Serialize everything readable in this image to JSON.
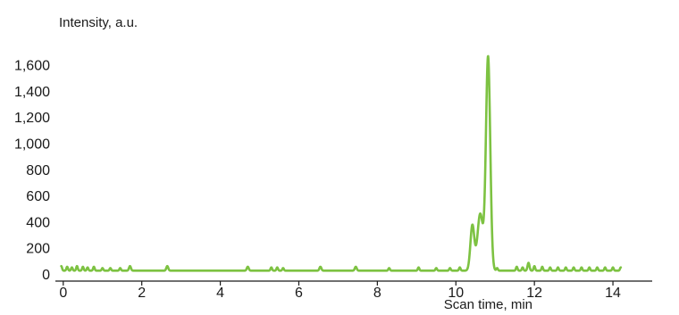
{
  "chart_data": {
    "type": "line",
    "title": "",
    "ylabel": "Intensity, a.u.",
    "xlabel": "Scan time, min",
    "xlim": [
      -0.2,
      15.0
    ],
    "ylim": [
      0,
      1700
    ],
    "x_ticks": [
      0,
      2,
      4,
      6,
      8,
      10,
      12,
      14
    ],
    "x_tick_labels": [
      "0",
      "2",
      "4",
      "6",
      "8",
      "10",
      "12",
      "14"
    ],
    "y_ticks": [
      0,
      200,
      400,
      600,
      800,
      1000,
      1200,
      1400,
      1600
    ],
    "y_tick_labels": [
      "0",
      "200",
      "400",
      "600",
      "800",
      "1,000",
      "1,200",
      "1,400",
      "1,600"
    ],
    "grid": false,
    "legend": "none",
    "series": [
      {
        "color": "#7dc242",
        "baseline": 25,
        "peaks": [
          {
            "x": 10.42,
            "y": 370,
            "width": 0.05
          },
          {
            "x": 10.62,
            "y": 460,
            "width": 0.07
          },
          {
            "x": 10.82,
            "y": 1660,
            "width": 0.055
          },
          {
            "x": -0.05,
            "y": 60,
            "width": 0.02
          },
          {
            "x": 0.1,
            "y": 55,
            "width": 0.02
          },
          {
            "x": 0.22,
            "y": 50,
            "width": 0.02
          },
          {
            "x": 0.35,
            "y": 60,
            "width": 0.02
          },
          {
            "x": 0.5,
            "y": 55,
            "width": 0.02
          },
          {
            "x": 0.62,
            "y": 50,
            "width": 0.02
          },
          {
            "x": 0.78,
            "y": 55,
            "width": 0.02
          },
          {
            "x": 1.0,
            "y": 45,
            "width": 0.02
          },
          {
            "x": 1.2,
            "y": 45,
            "width": 0.02
          },
          {
            "x": 1.45,
            "y": 45,
            "width": 0.02
          },
          {
            "x": 1.7,
            "y": 60,
            "width": 0.025
          },
          {
            "x": 2.65,
            "y": 60,
            "width": 0.025
          },
          {
            "x": 4.7,
            "y": 55,
            "width": 0.025
          },
          {
            "x": 5.3,
            "y": 50,
            "width": 0.02
          },
          {
            "x": 5.45,
            "y": 50,
            "width": 0.02
          },
          {
            "x": 5.6,
            "y": 45,
            "width": 0.02
          },
          {
            "x": 6.55,
            "y": 55,
            "width": 0.025
          },
          {
            "x": 7.45,
            "y": 55,
            "width": 0.025
          },
          {
            "x": 8.3,
            "y": 45,
            "width": 0.02
          },
          {
            "x": 9.05,
            "y": 50,
            "width": 0.02
          },
          {
            "x": 9.5,
            "y": 45,
            "width": 0.02
          },
          {
            "x": 9.85,
            "y": 45,
            "width": 0.02
          },
          {
            "x": 10.1,
            "y": 50,
            "width": 0.02
          },
          {
            "x": 11.05,
            "y": 45,
            "width": 0.02
          },
          {
            "x": 11.55,
            "y": 55,
            "width": 0.02
          },
          {
            "x": 11.7,
            "y": 50,
            "width": 0.02
          },
          {
            "x": 11.85,
            "y": 85,
            "width": 0.025
          },
          {
            "x": 12.0,
            "y": 60,
            "width": 0.02
          },
          {
            "x": 12.2,
            "y": 55,
            "width": 0.02
          },
          {
            "x": 12.4,
            "y": 50,
            "width": 0.02
          },
          {
            "x": 12.6,
            "y": 50,
            "width": 0.02
          },
          {
            "x": 12.8,
            "y": 50,
            "width": 0.02
          },
          {
            "x": 13.0,
            "y": 50,
            "width": 0.02
          },
          {
            "x": 13.2,
            "y": 50,
            "width": 0.02
          },
          {
            "x": 13.4,
            "y": 50,
            "width": 0.02
          },
          {
            "x": 13.6,
            "y": 50,
            "width": 0.02
          },
          {
            "x": 13.8,
            "y": 50,
            "width": 0.02
          },
          {
            "x": 14.0,
            "y": 50,
            "width": 0.02
          },
          {
            "x": 14.2,
            "y": 50,
            "width": 0.02
          }
        ]
      }
    ]
  }
}
